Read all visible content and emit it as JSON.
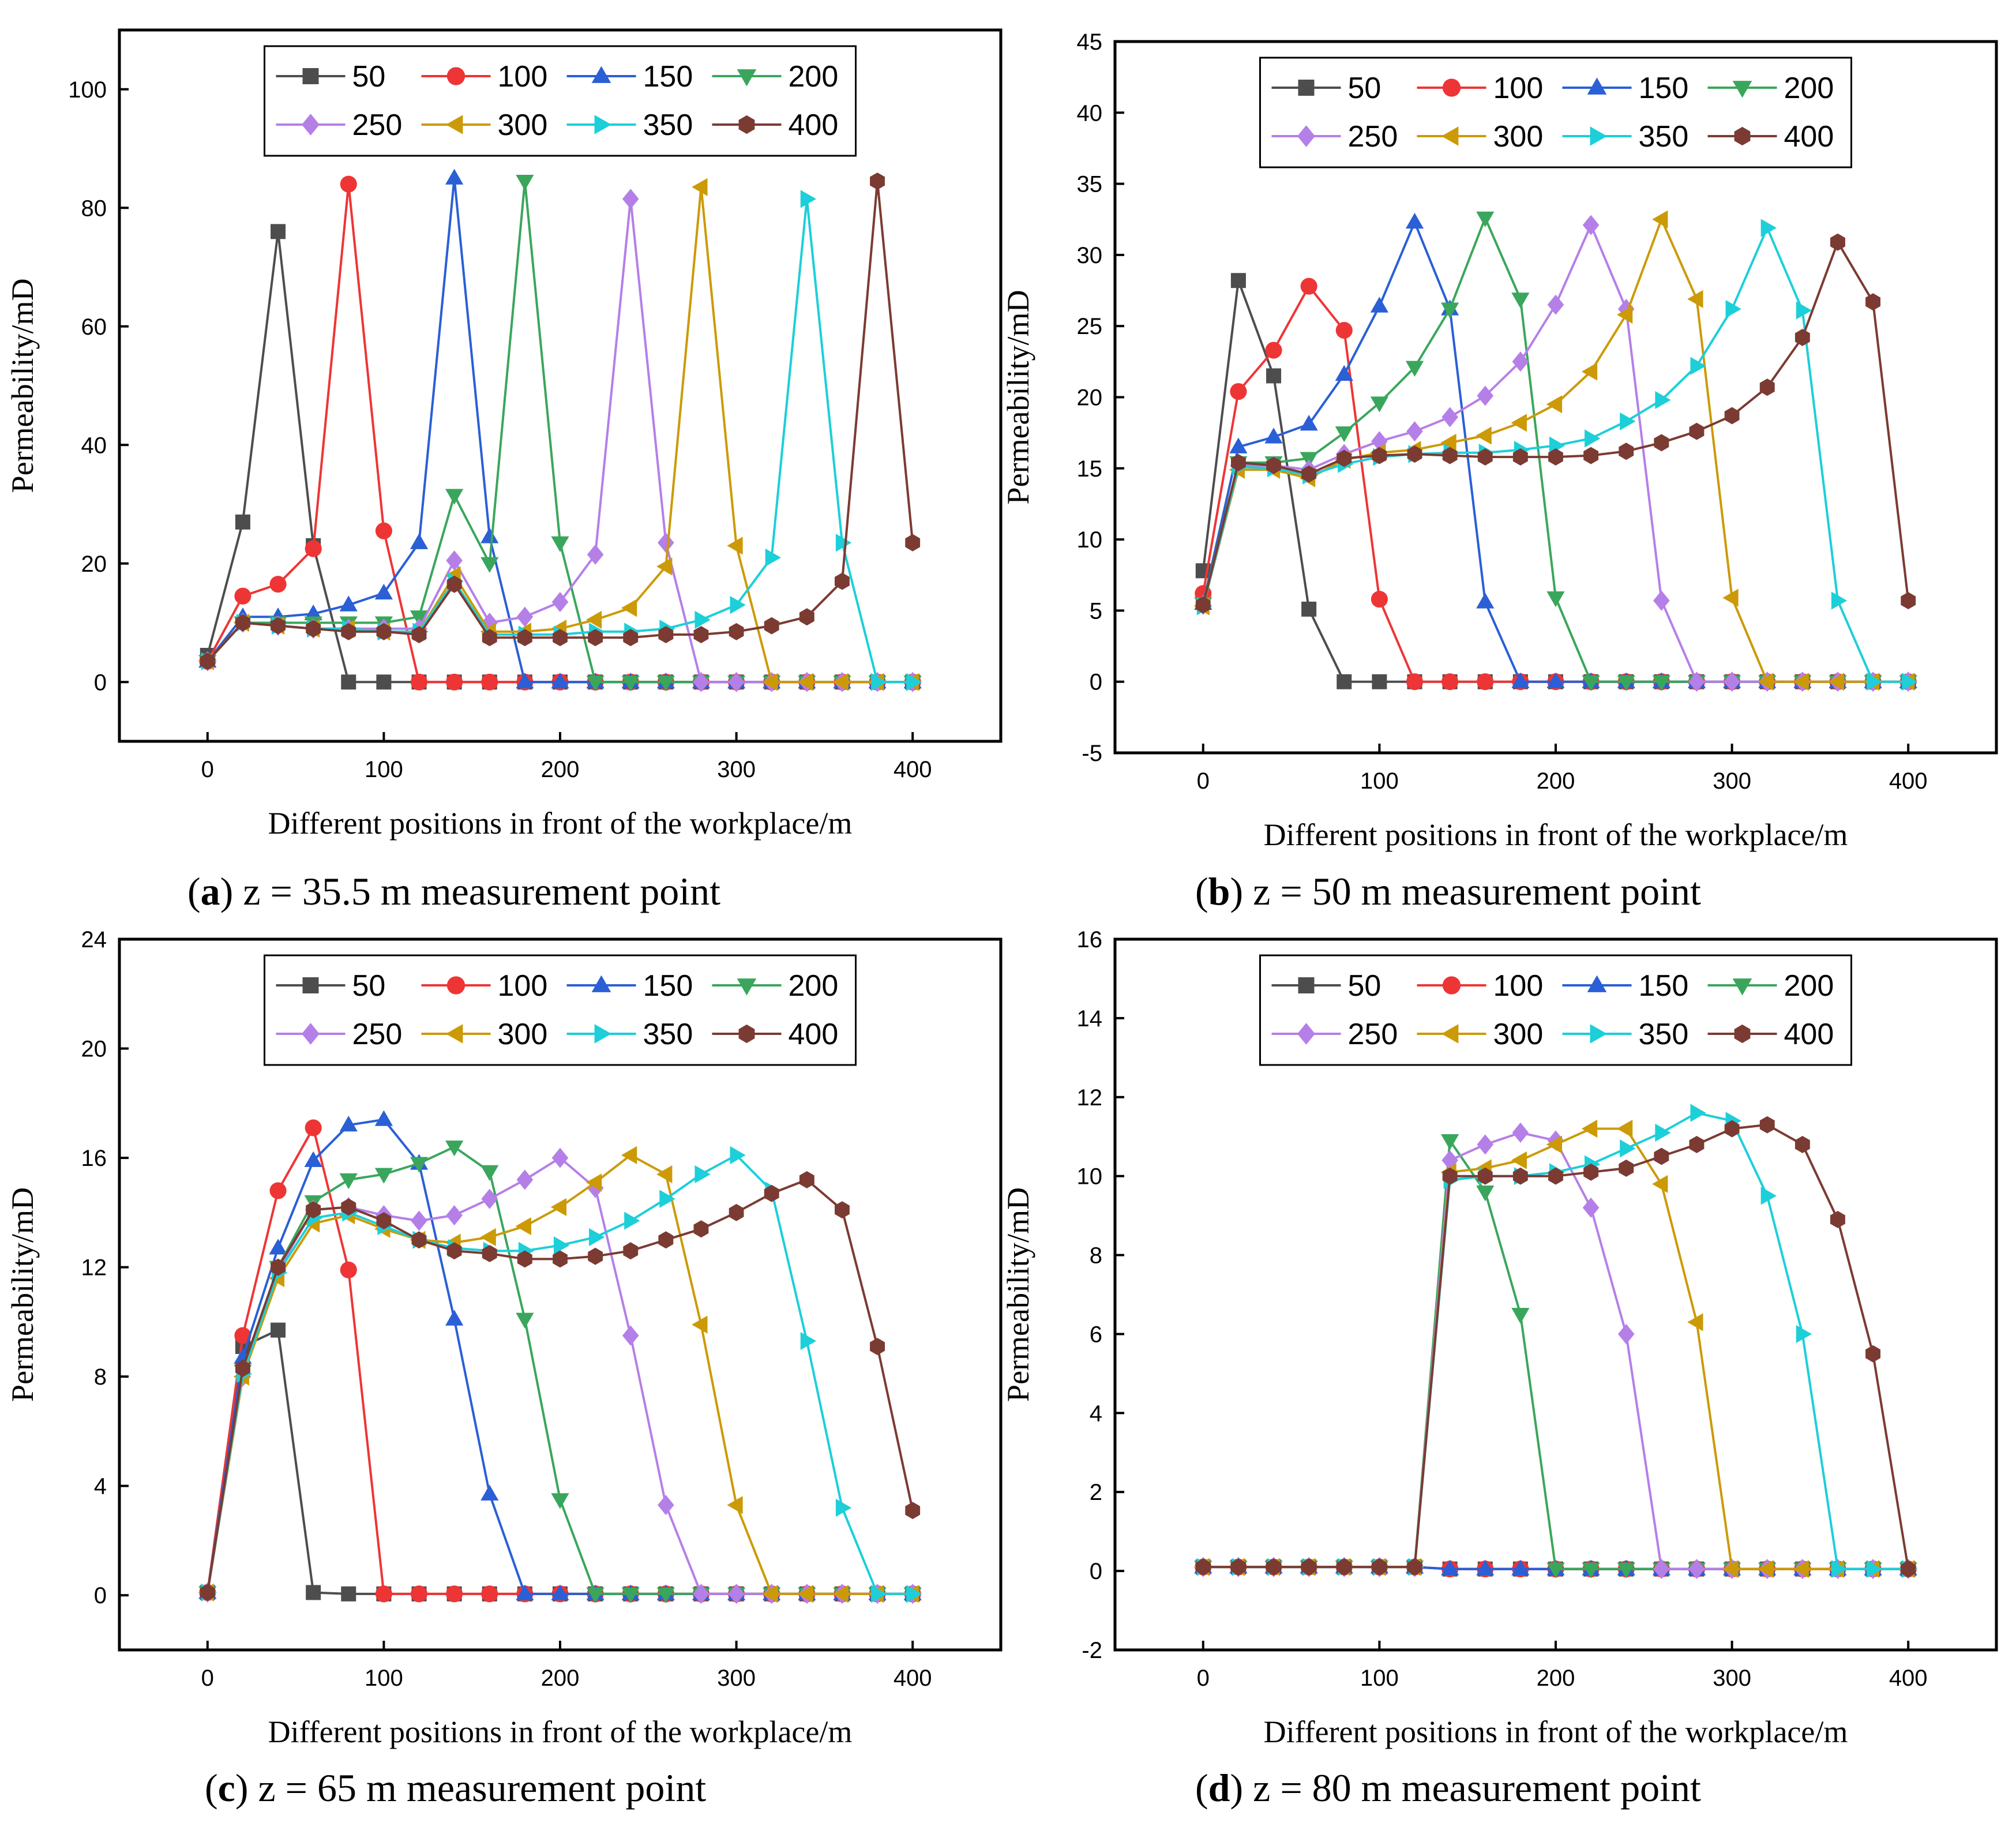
{
  "figure": {
    "colors": {
      "50": "#4d4d4d",
      "100": "#ee3535",
      "150": "#2a5fd6",
      "200": "#3aa65c",
      "250": "#b57fe8",
      "300": "#cc9a06",
      "350": "#1ccfd9",
      "400": "#7b3b32"
    },
    "markers": {
      "50": "square",
      "100": "circle",
      "150": "triangle-up",
      "200": "triangle-down",
      "250": "diamond",
      "300": "triangle-left",
      "350": "triangle-right",
      "400": "hexagon"
    }
  },
  "chart_data": [
    {
      "type": "line",
      "panel": "a",
      "caption_letter": "a",
      "caption_text": " z = 35.5 m measurement point",
      "xlabel": "Different positions in front of the workplace/m",
      "ylabel": "Permeability/mD",
      "xlim": [
        -50,
        450
      ],
      "ylim": [
        -10,
        110
      ],
      "xticks": [
        0,
        100,
        200,
        300,
        400
      ],
      "yticks": [
        0,
        20,
        40,
        60,
        80,
        100
      ],
      "legend_position": "top",
      "x": [
        0,
        20,
        40,
        60,
        80,
        100,
        120,
        140,
        160,
        180,
        200,
        220,
        240,
        260,
        280,
        300,
        320,
        340,
        360,
        380,
        400
      ],
      "series": [
        {
          "name": "50",
          "values": [
            4.5,
            27,
            76,
            23,
            0,
            0,
            0,
            0,
            0,
            0,
            0,
            0,
            0,
            0,
            0,
            0,
            0,
            0,
            0,
            0,
            0
          ]
        },
        {
          "name": "100",
          "values": [
            3.5,
            14.5,
            16.5,
            22.5,
            84,
            25.5,
            0,
            0,
            0,
            0,
            0,
            0,
            0,
            0,
            0,
            0,
            0,
            0,
            0,
            0,
            0
          ]
        },
        {
          "name": "150",
          "values": [
            3.5,
            11,
            11,
            11.5,
            13,
            15,
            23.5,
            85,
            24.5,
            0,
            0,
            0,
            0,
            0,
            0,
            0,
            0,
            0,
            0,
            0,
            0
          ]
        },
        {
          "name": "200",
          "values": [
            3.5,
            10,
            10,
            10,
            10,
            10,
            11,
            31.5,
            20,
            84.5,
            23.5,
            0,
            0,
            0,
            0,
            0,
            0,
            0,
            0,
            0,
            0
          ]
        },
        {
          "name": "250",
          "values": [
            3.5,
            10,
            9.5,
            9,
            9,
            9,
            9,
            20.5,
            10,
            11,
            13.5,
            21.5,
            81.5,
            23.5,
            0,
            0,
            0,
            0,
            0,
            0,
            0
          ]
        },
        {
          "name": "300",
          "values": [
            3.5,
            10,
            9.5,
            9,
            9,
            8.5,
            8.5,
            18,
            8.5,
            8.5,
            9,
            10.5,
            12.5,
            19.5,
            83.5,
            23,
            0,
            0,
            0,
            0,
            0
          ]
        },
        {
          "name": "350",
          "values": [
            3.5,
            10,
            9.5,
            9,
            9,
            8.5,
            8.5,
            17,
            8,
            8,
            8,
            8.5,
            8.5,
            9,
            10.5,
            13,
            21,
            81.5,
            23.5,
            0,
            0
          ]
        },
        {
          "name": "400",
          "values": [
            3.5,
            10,
            9.5,
            9,
            8.5,
            8.5,
            8,
            16.5,
            7.5,
            7.5,
            7.5,
            7.5,
            7.5,
            8,
            8,
            8.5,
            9.5,
            11,
            17,
            84.5,
            23.5
          ]
        }
      ]
    },
    {
      "type": "line",
      "panel": "b",
      "caption_letter": "b",
      "caption_text": " z = 50 m measurement point",
      "xlabel": "Different positions in front of the workplace/m",
      "ylabel": "Permeability/mD",
      "xlim": [
        -50,
        450
      ],
      "ylim": [
        -5,
        45
      ],
      "xticks": [
        0,
        100,
        200,
        300,
        400
      ],
      "yticks": [
        -5,
        0,
        5,
        10,
        15,
        20,
        25,
        30,
        35,
        40,
        45
      ],
      "legend_position": "top",
      "x": [
        0,
        20,
        40,
        60,
        80,
        100,
        120,
        140,
        160,
        180,
        200,
        220,
        240,
        260,
        280,
        300,
        320,
        340,
        360,
        380,
        400
      ],
      "series": [
        {
          "name": "50",
          "values": [
            7.8,
            28.2,
            21.5,
            5.1,
            0,
            0,
            0,
            0,
            0,
            0,
            0,
            0,
            0,
            0,
            0,
            0,
            0,
            0,
            0,
            0,
            0
          ]
        },
        {
          "name": "100",
          "values": [
            6.2,
            20.4,
            23.3,
            27.8,
            24.7,
            5.8,
            0,
            0,
            0,
            0,
            0,
            0,
            0,
            0,
            0,
            0,
            0,
            0,
            0,
            0,
            0
          ]
        },
        {
          "name": "150",
          "values": [
            5.5,
            16.5,
            17.2,
            18.1,
            21.6,
            26.4,
            32.3,
            26.2,
            5.6,
            0,
            0,
            0,
            0,
            0,
            0,
            0,
            0,
            0,
            0,
            0,
            0
          ]
        },
        {
          "name": "200",
          "values": [
            5.5,
            15.4,
            15.4,
            15.7,
            17.5,
            19.6,
            22.1,
            26.2,
            32.6,
            26.9,
            5.9,
            0,
            0,
            0,
            0,
            0,
            0,
            0,
            0,
            0,
            0
          ]
        },
        {
          "name": "250",
          "values": [
            5.4,
            15.2,
            15.2,
            14.9,
            16.0,
            16.9,
            17.6,
            18.6,
            20.1,
            22.5,
            26.5,
            32.1,
            26.2,
            5.7,
            0,
            0,
            0,
            0,
            0,
            0,
            0
          ]
        },
        {
          "name": "300",
          "values": [
            5.3,
            14.9,
            14.9,
            14.3,
            15.6,
            16.1,
            16.3,
            16.8,
            17.3,
            18.2,
            19.5,
            21.8,
            25.8,
            32.5,
            26.9,
            5.9,
            0,
            0,
            0,
            0,
            0
          ]
        },
        {
          "name": "350",
          "values": [
            5.3,
            15.1,
            15.0,
            14.5,
            15.3,
            15.8,
            16.0,
            16.1,
            16.1,
            16.3,
            16.6,
            17.1,
            18.3,
            19.8,
            22.2,
            26.2,
            31.9,
            26.1,
            5.7,
            0,
            0
          ]
        },
        {
          "name": "400",
          "values": [
            5.4,
            15.4,
            15.2,
            14.6,
            15.7,
            15.9,
            16.0,
            15.9,
            15.8,
            15.8,
            15.8,
            15.9,
            16.2,
            16.8,
            17.6,
            18.7,
            20.7,
            24.2,
            30.9,
            26.7,
            5.7
          ]
        }
      ]
    },
    {
      "type": "line",
      "panel": "c",
      "caption_letter": "c",
      "caption_text": " z = 65 m measurement point",
      "xlabel": "Different positions in front of the workplace/m",
      "ylabel": "Permeability/mD",
      "xlim": [
        -50,
        450
      ],
      "ylim": [
        -2,
        24
      ],
      "xticks": [
        0,
        100,
        200,
        300,
        400
      ],
      "yticks": [
        0,
        4,
        8,
        12,
        16,
        20,
        24
      ],
      "legend_position": "top",
      "x": [
        0,
        20,
        40,
        60,
        80,
        100,
        120,
        140,
        160,
        180,
        200,
        220,
        240,
        260,
        280,
        300,
        320,
        340,
        360,
        380,
        400
      ],
      "series": [
        {
          "name": "50",
          "values": [
            0.1,
            9.1,
            9.7,
            0.1,
            0.05,
            0.05,
            0.05,
            0.05,
            0.05,
            0.05,
            0.05,
            0.05,
            0.05,
            0.05,
            0.05,
            0.05,
            0.05,
            0.05,
            0.05,
            0.05,
            0.05
          ]
        },
        {
          "name": "100",
          "values": [
            0.1,
            9.5,
            14.8,
            17.1,
            11.9,
            0.05,
            0.05,
            0.05,
            0.05,
            0.05,
            0.05,
            0.05,
            0.05,
            0.05,
            0.05,
            0.05,
            0.05,
            0.05,
            0.05,
            0.05,
            0.05
          ]
        },
        {
          "name": "150",
          "values": [
            0.1,
            8.7,
            12.7,
            15.9,
            17.2,
            17.4,
            15.8,
            10.1,
            3.7,
            0.05,
            0.05,
            0.05,
            0.05,
            0.05,
            0.05,
            0.05,
            0.05,
            0.05,
            0.05,
            0.05,
            0.05
          ]
        },
        {
          "name": "200",
          "values": [
            0.1,
            8.2,
            12.0,
            14.4,
            15.2,
            15.4,
            15.8,
            16.4,
            15.5,
            10.1,
            3.5,
            0.05,
            0.05,
            0.05,
            0.05,
            0.05,
            0.05,
            0.05,
            0.05,
            0.05,
            0.05
          ]
        },
        {
          "name": "250",
          "values": [
            0.1,
            8.0,
            11.9,
            14.1,
            14.2,
            13.9,
            13.7,
            13.9,
            14.5,
            15.2,
            16.0,
            14.9,
            9.5,
            3.3,
            0.05,
            0.05,
            0.05,
            0.05,
            0.05,
            0.05,
            0.05
          ]
        },
        {
          "name": "300",
          "values": [
            0.1,
            8.0,
            11.6,
            13.6,
            13.9,
            13.4,
            13.0,
            12.9,
            13.1,
            13.5,
            14.2,
            15.1,
            16.1,
            15.4,
            9.9,
            3.3,
            0.05,
            0.05,
            0.05,
            0.05,
            0.05
          ]
        },
        {
          "name": "350",
          "values": [
            0.1,
            8.1,
            11.8,
            13.8,
            14.0,
            13.5,
            13.0,
            12.7,
            12.6,
            12.6,
            12.8,
            13.1,
            13.7,
            14.5,
            15.4,
            16.1,
            14.8,
            9.3,
            3.2,
            0.05,
            0.05
          ]
        },
        {
          "name": "400",
          "values": [
            0.1,
            8.3,
            12.0,
            14.1,
            14.2,
            13.7,
            13.0,
            12.6,
            12.5,
            12.3,
            12.3,
            12.4,
            12.6,
            13.0,
            13.4,
            14.0,
            14.7,
            15.2,
            14.1,
            9.1,
            3.1
          ]
        }
      ]
    },
    {
      "type": "line",
      "panel": "d",
      "caption_letter": "d",
      "caption_text": " z = 80 m measurement point",
      "xlabel": "Different positions in front of the workplace/m",
      "ylabel": "Permeability/mD",
      "xlim": [
        -50,
        450
      ],
      "ylim": [
        -2,
        16
      ],
      "xticks": [
        0,
        100,
        200,
        300,
        400
      ],
      "yticks": [
        -2,
        0,
        2,
        4,
        6,
        8,
        10,
        12,
        14,
        16
      ],
      "legend_position": "top",
      "x": [
        0,
        20,
        40,
        60,
        80,
        100,
        120,
        140,
        160,
        180,
        200,
        220,
        240,
        260,
        280,
        300,
        320,
        340,
        360,
        380,
        400
      ],
      "series": [
        {
          "name": "50",
          "values": [
            0.1,
            0.1,
            0.1,
            0.1,
            0.1,
            0.1,
            0.1,
            0.05,
            0.05,
            0.05,
            0.05,
            0.05,
            0.05,
            0.05,
            0.05,
            0.05,
            0.05,
            0.05,
            0.05,
            0.05,
            0.05
          ]
        },
        {
          "name": "100",
          "values": [
            0.1,
            0.1,
            0.1,
            0.1,
            0.1,
            0.1,
            0.1,
            0.05,
            0.05,
            0.05,
            0.05,
            0.05,
            0.05,
            0.05,
            0.05,
            0.05,
            0.05,
            0.05,
            0.05,
            0.05,
            0.05
          ]
        },
        {
          "name": "150",
          "values": [
            0.1,
            0.1,
            0.1,
            0.1,
            0.1,
            0.1,
            0.1,
            0.05,
            0.05,
            0.05,
            0.05,
            0.05,
            0.05,
            0.05,
            0.05,
            0.05,
            0.05,
            0.05,
            0.05,
            0.05,
            0.05
          ]
        },
        {
          "name": "200",
          "values": [
            0.1,
            0.1,
            0.1,
            0.1,
            0.1,
            0.1,
            0.1,
            10.9,
            9.6,
            6.5,
            0.05,
            0.05,
            0.05,
            0.05,
            0.05,
            0.05,
            0.05,
            0.05,
            0.05,
            0.05,
            0.05
          ]
        },
        {
          "name": "250",
          "values": [
            0.1,
            0.1,
            0.1,
            0.1,
            0.1,
            0.1,
            0.1,
            10.4,
            10.8,
            11.1,
            10.9,
            9.2,
            6.0,
            0.05,
            0.05,
            0.05,
            0.05,
            0.05,
            0.05,
            0.05,
            0.05
          ]
        },
        {
          "name": "300",
          "values": [
            0.1,
            0.1,
            0.1,
            0.1,
            0.1,
            0.1,
            0.1,
            10.1,
            10.2,
            10.4,
            10.8,
            11.2,
            11.2,
            9.8,
            6.3,
            0.05,
            0.05,
            0.05,
            0.05,
            0.05,
            0.05
          ]
        },
        {
          "name": "350",
          "values": [
            0.1,
            0.1,
            0.1,
            0.1,
            0.1,
            0.1,
            0.1,
            9.9,
            10.0,
            10.0,
            10.1,
            10.3,
            10.7,
            11.1,
            11.6,
            11.4,
            9.5,
            6.0,
            0.05,
            0.05,
            0.05
          ]
        },
        {
          "name": "400",
          "values": [
            0.1,
            0.1,
            0.1,
            0.1,
            0.1,
            0.1,
            0.1,
            10.0,
            10.0,
            10.0,
            10.0,
            10.1,
            10.2,
            10.5,
            10.8,
            11.2,
            11.3,
            10.8,
            8.9,
            5.5,
            0.05
          ]
        }
      ]
    }
  ]
}
